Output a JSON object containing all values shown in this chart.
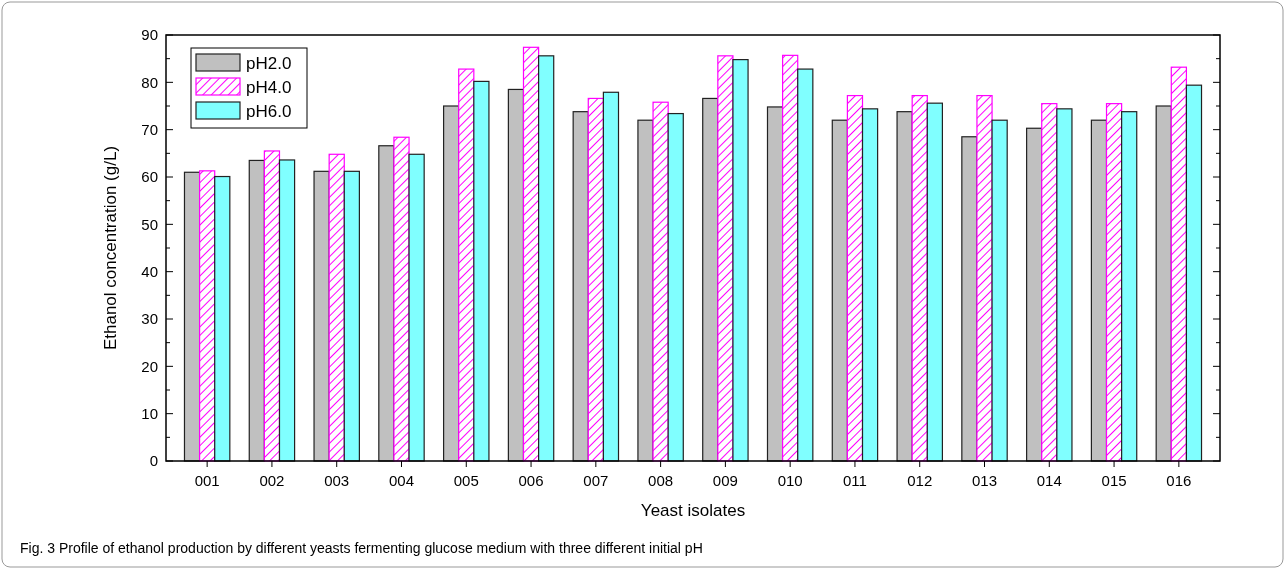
{
  "chart_data": {
    "type": "bar",
    "xlabel": "Yeast isolates",
    "ylabel": "Ethanol concentration (g/L)",
    "categories": [
      "001",
      "002",
      "003",
      "004",
      "005",
      "006",
      "007",
      "008",
      "009",
      "010",
      "011",
      "012",
      "013",
      "014",
      "015",
      "016"
    ],
    "series": [
      {
        "name": "pH2.0",
        "color": "#c0c0c0",
        "values": [
          61,
          63.5,
          61.2,
          66.6,
          75,
          78.5,
          73.8,
          72,
          76.6,
          74.8,
          72,
          73.8,
          68.5,
          70.3,
          72,
          75
        ]
      },
      {
        "name": "pH4.0",
        "color": "#ff00ff",
        "values": [
          61.3,
          65.5,
          64.8,
          68.4,
          82.8,
          87.4,
          76.6,
          75.8,
          85.6,
          85.7,
          77.2,
          77.2,
          77.2,
          75.5,
          75.5,
          83.2
        ]
      },
      {
        "name": "pH6.0",
        "color": "#80ffff",
        "values": [
          60.1,
          63.6,
          61.2,
          64.8,
          80.2,
          85.6,
          77.9,
          73.4,
          84.8,
          82.8,
          74.4,
          75.6,
          72,
          74.4,
          73.8,
          79.4
        ]
      }
    ],
    "ylim": [
      0,
      90
    ],
    "yticks": [
      0,
      {
        "value": 5,
        "label": null
      },
      10,
      {
        "value": 15,
        "label": null
      },
      20,
      {
        "value": 25,
        "label": null
      },
      30,
      {
        "value": 35,
        "label": null
      },
      40,
      {
        "value": 45,
        "label": null
      },
      50,
      {
        "value": 55,
        "label": null
      },
      60,
      {
        "value": 65,
        "label": null
      },
      70,
      {
        "value": 75,
        "label": null
      },
      80,
      {
        "value": 85,
        "label": null
      },
      90
    ],
    "legend": "top left",
    "grid": false,
    "annotations": [
      "Fig. 3  Profile of ethanol production by different yeasts fermenting glucose medium with three different initial pH"
    ]
  }
}
